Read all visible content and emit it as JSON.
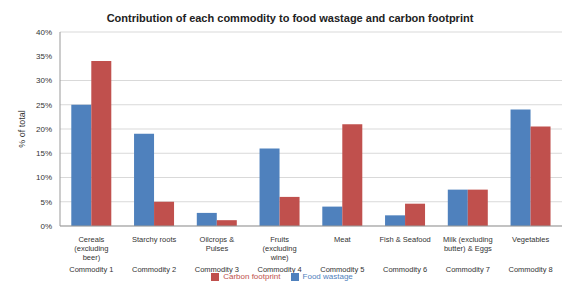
{
  "chart_data": {
    "type": "bar",
    "title": "Contribution of each commodity to food wastage and carbon footprint",
    "y_label": "% of total",
    "categories": [
      "Cereals (excluding beer)",
      "Starchy roots",
      "Oilcrops & Pulses",
      "Fruits (excluding wine)",
      "Meat",
      "Fish & Seafood",
      "Milk (excluding butter) & Eggs",
      "Vegetables"
    ],
    "category_groups": [
      "Commodity 1",
      "Commodity 2",
      "Commodity 3",
      "Commodity 4",
      "Commodity 5",
      "Commodity 6",
      "Commodity 7",
      "Commodity 8"
    ],
    "series": [
      {
        "name": "Food wastage",
        "color": "#4f81bd",
        "values": [
          25,
          19,
          2.7,
          16,
          4,
          2.2,
          7.5,
          24
        ]
      },
      {
        "name": "Carbon footprint",
        "color": "#c0504d",
        "values": [
          34,
          5,
          1.2,
          6,
          21,
          4.6,
          7.5,
          20.5
        ]
      }
    ],
    "ylim": [
      0,
      40
    ],
    "yticks": [
      {
        "value": 0,
        "label": "0%"
      },
      {
        "value": 5,
        "label": "5%"
      },
      {
        "value": 10,
        "label": "10%"
      },
      {
        "value": 15,
        "label": "15%"
      },
      {
        "value": 20,
        "label": "20%"
      },
      {
        "value": 25,
        "label": "25%"
      },
      {
        "value": 30,
        "label": "30%"
      },
      {
        "value": 35,
        "label": "35%"
      },
      {
        "value": 40,
        "label": "40%"
      }
    ],
    "grid": true,
    "legend": "bottom"
  }
}
